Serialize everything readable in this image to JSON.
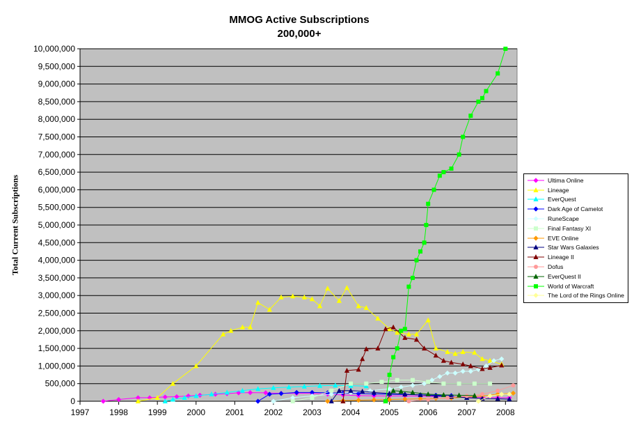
{
  "chart_data": {
    "type": "line",
    "title": "MMOG Active Subscriptions",
    "subtitle": "200,000+",
    "xlabel": "",
    "ylabel": "Total Current Subscriptions",
    "xlim": [
      1997,
      2008.3
    ],
    "ylim": [
      0,
      10000000
    ],
    "x_ticks": [
      "1997",
      "1998",
      "1999",
      "2000",
      "2001",
      "2002",
      "2003",
      "2004",
      "2005",
      "2006",
      "2007",
      "2008"
    ],
    "y_ticks": [
      "0",
      "500,000",
      "1,000,000",
      "1,500,000",
      "2,000,000",
      "2,500,000",
      "3,000,000",
      "3,500,000",
      "4,000,000",
      "4,500,000",
      "5,000,000",
      "5,500,000",
      "6,000,000",
      "6,500,000",
      "7,000,000",
      "7,500,000",
      "8,000,000",
      "8,500,000",
      "9,000,000",
      "9,500,000",
      "10,000,000"
    ],
    "grid": true,
    "plot_background": "#c0c0c0",
    "legend_position": "right",
    "series": [
      {
        "name": "Ultima Online",
        "color": "#ff00ff",
        "marker": "diamond",
        "x": [
          1997.6,
          1998.0,
          1998.5,
          1998.8,
          1999.2,
          1999.5,
          1999.8,
          2000.1,
          2000.5,
          2000.8,
          2001.1,
          2001.4,
          2001.8,
          2002.2,
          2002.6,
          2003.0,
          2003.4,
          2003.8,
          2004.2,
          2004.6,
          2005.0,
          2005.4,
          2005.8,
          2006.2,
          2006.6,
          2007.0,
          2007.4,
          2007.8,
          2008.1
        ],
        "y": [
          0,
          50000,
          100000,
          100000,
          120000,
          130000,
          150000,
          170000,
          200000,
          215000,
          240000,
          245000,
          240000,
          225000,
          225000,
          225000,
          200000,
          180000,
          160000,
          155000,
          150000,
          150000,
          140000,
          135000,
          130000,
          120000,
          110000,
          100000,
          100000
        ]
      },
      {
        "name": "Lineage",
        "color": "#ffff00",
        "marker": "triangle",
        "x": [
          1998.5,
          1999.0,
          1999.4,
          2000.0,
          2000.7,
          2000.9,
          2001.2,
          2001.4,
          2001.6,
          2001.9,
          2002.2,
          2002.5,
          2002.8,
          2003.0,
          2003.2,
          2003.4,
          2003.7,
          2003.9,
          2004.2,
          2004.4,
          2004.7,
          2005.0,
          2005.2,
          2005.5,
          2005.7,
          2006.0,
          2006.2,
          2006.5,
          2006.7,
          2006.9,
          2007.2,
          2007.4,
          2007.6,
          2007.9
        ],
        "y": [
          0,
          100000,
          500000,
          1000000,
          1900000,
          2000000,
          2100000,
          2100000,
          2800000,
          2600000,
          2950000,
          2980000,
          2950000,
          2900000,
          2700000,
          3200000,
          2850000,
          3220000,
          2700000,
          2650000,
          2350000,
          2050000,
          1950000,
          1900000,
          1900000,
          2300000,
          1500000,
          1400000,
          1350000,
          1400000,
          1380000,
          1200000,
          1150000,
          1050000
        ]
      },
      {
        "name": "EverQuest",
        "color": "#00ffff",
        "marker": "triangle",
        "x": [
          1999.2,
          1999.4,
          1999.7,
          2000.0,
          2000.4,
          2000.8,
          2001.2,
          2001.6,
          2002.0,
          2002.4,
          2002.8,
          2003.2,
          2003.6,
          2004.0,
          2004.4
        ],
        "y": [
          0,
          50000,
          100000,
          150000,
          200000,
          250000,
          300000,
          350000,
          380000,
          400000,
          420000,
          440000,
          450000,
          440000,
          430000
        ]
      },
      {
        "name": "Dark Age of Camelot",
        "color": "#0000ff",
        "marker": "diamond",
        "x": [
          2001.6,
          2001.9,
          2002.2,
          2002.6,
          2003.0,
          2003.4,
          2003.8,
          2004.2,
          2004.6,
          2005.0,
          2005.4,
          2005.8,
          2006.2,
          2006.6
        ],
        "y": [
          0,
          200000,
          220000,
          250000,
          250000,
          240000,
          230000,
          220000,
          210000,
          200000,
          190000,
          180000,
          170000,
          160000
        ]
      },
      {
        "name": "RuneScape",
        "color": "#ccffff",
        "marker": "diamond",
        "x": [
          2002.0,
          2002.5,
          2003.0,
          2003.5,
          2004.0,
          2004.5,
          2005.0,
          2005.3,
          2005.6,
          2005.9,
          2006.1,
          2006.3,
          2006.5,
          2006.7,
          2006.9,
          2007.1,
          2007.3,
          2007.5,
          2007.7,
          2007.9
        ],
        "y": [
          0,
          100000,
          150000,
          200000,
          250000,
          300000,
          350000,
          400000,
          450000,
          500000,
          600000,
          700000,
          800000,
          800000,
          850000,
          850000,
          900000,
          1000000,
          1150000,
          1200000
        ]
      },
      {
        "name": "Final Fantasy XI",
        "color": "#ccffcc",
        "marker": "square",
        "x": [
          2002.5,
          2003.0,
          2003.5,
          2004.0,
          2004.4,
          2004.8,
          2005.2,
          2005.6,
          2006.0,
          2006.4,
          2006.8,
          2007.2,
          2007.6
        ],
        "y": [
          0,
          100000,
          300000,
          500000,
          500000,
          550000,
          600000,
          600000,
          550000,
          500000,
          500000,
          500000,
          500000
        ]
      },
      {
        "name": "EVE Online",
        "color": "#ff9900",
        "marker": "diamond",
        "x": [
          2003.4,
          2003.8,
          2004.2,
          2004.6,
          2005.0,
          2005.4,
          2005.8,
          2006.2,
          2006.6,
          2007.0,
          2007.4,
          2007.8,
          2008.2
        ],
        "y": [
          0,
          20000,
          30000,
          40000,
          50000,
          60000,
          70000,
          80000,
          90000,
          120000,
          150000,
          200000,
          230000
        ]
      },
      {
        "name": "Star Wars Galaxies",
        "color": "#000080",
        "marker": "triangle",
        "x": [
          2003.5,
          2003.7,
          2004.0,
          2004.3,
          2004.6,
          2005.0,
          2005.4,
          2005.8,
          2006.2,
          2006.6,
          2007.0,
          2007.4,
          2007.8,
          2008.1
        ],
        "y": [
          0,
          300000,
          300000,
          280000,
          250000,
          220000,
          200000,
          180000,
          150000,
          130000,
          100000,
          80000,
          70000,
          60000
        ]
      },
      {
        "name": "Lineage II",
        "color": "#800000",
        "marker": "triangle",
        "x": [
          2003.8,
          2003.9,
          2004.2,
          2004.3,
          2004.4,
          2004.7,
          2004.9,
          2005.1,
          2005.4,
          2005.7,
          2005.9,
          2006.2,
          2006.4,
          2006.6,
          2006.9,
          2007.1,
          2007.4,
          2007.6,
          2007.9
        ],
        "y": [
          0,
          870000,
          900000,
          1200000,
          1480000,
          1500000,
          2050000,
          2100000,
          1800000,
          1750000,
          1500000,
          1300000,
          1150000,
          1100000,
          1050000,
          1000000,
          920000,
          950000,
          1020000
        ]
      },
      {
        "name": "Dofus",
        "color": "#ff9999",
        "marker": "circle",
        "x": [
          2005.5,
          2006.0,
          2006.5,
          2007.0,
          2007.4,
          2007.8,
          2008.2
        ],
        "y": [
          0,
          50000,
          100000,
          150000,
          200000,
          300000,
          450000
        ]
      },
      {
        "name": "EverQuest II",
        "color": "#006600",
        "marker": "triangle",
        "x": [
          2004.9,
          2005.1,
          2005.3,
          2005.6,
          2006.0,
          2006.4,
          2006.8,
          2007.2
        ],
        "y": [
          0,
          300000,
          280000,
          250000,
          200000,
          180000,
          170000,
          160000
        ]
      },
      {
        "name": "World of Warcraft",
        "color": "#00ff00",
        "marker": "square",
        "x": [
          2004.9,
          2005.0,
          2005.1,
          2005.2,
          2005.3,
          2005.4,
          2005.5,
          2005.6,
          2005.7,
          2005.8,
          2005.9,
          2005.95,
          2006.0,
          2006.15,
          2006.3,
          2006.4,
          2006.6,
          2006.8,
          2006.9,
          2007.1,
          2007.3,
          2007.4,
          2007.5,
          2007.8,
          2008.0
        ],
        "y": [
          0,
          750000,
          1250000,
          1500000,
          2000000,
          2050000,
          3250000,
          3500000,
          4000000,
          4250000,
          4500000,
          5000000,
          5600000,
          6000000,
          6400000,
          6500000,
          6600000,
          7000000,
          7500000,
          8100000,
          8500000,
          8600000,
          8800000,
          9300000,
          10000000
        ]
      },
      {
        "name": "The Lord of the Rings Online",
        "color": "#ffff99",
        "marker": "diamond",
        "x": [
          2007.3,
          2007.6,
          2007.9,
          2008.1
        ],
        "y": [
          0,
          150000,
          200000,
          200000
        ]
      }
    ]
  }
}
